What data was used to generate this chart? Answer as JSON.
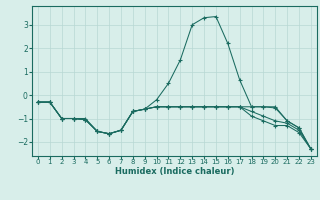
{
  "title": "",
  "xlabel": "Humidex (Indice chaleur)",
  "background_color": "#d8eeea",
  "grid_color": "#b8d8d4",
  "line_color": "#1a6b60",
  "xlim": [
    -0.5,
    23.5
  ],
  "ylim": [
    -2.6,
    3.8
  ],
  "yticks": [
    -2,
    -1,
    0,
    1,
    2,
    3
  ],
  "xticks": [
    0,
    1,
    2,
    3,
    4,
    5,
    6,
    7,
    8,
    9,
    10,
    11,
    12,
    13,
    14,
    15,
    16,
    17,
    18,
    19,
    20,
    21,
    22,
    23
  ],
  "x": [
    0,
    1,
    2,
    3,
    4,
    5,
    6,
    7,
    8,
    9,
    10,
    11,
    12,
    13,
    14,
    15,
    16,
    17,
    18,
    19,
    20,
    21,
    22,
    23
  ],
  "line1": [
    -0.3,
    -0.3,
    -1.0,
    -1.0,
    -1.0,
    -1.55,
    -1.65,
    -1.5,
    -0.7,
    -0.6,
    -0.2,
    0.5,
    1.5,
    3.0,
    3.3,
    3.35,
    2.2,
    0.65,
    -0.5,
    -0.5,
    -0.5,
    -1.1,
    -1.4,
    -2.3
  ],
  "line2": [
    -0.3,
    -0.3,
    -1.0,
    -1.0,
    -1.05,
    -1.55,
    -1.65,
    -1.5,
    -0.7,
    -0.6,
    -0.5,
    -0.5,
    -0.5,
    -0.5,
    -0.5,
    -0.5,
    -0.5,
    -0.5,
    -0.5,
    -0.5,
    -0.55,
    -1.1,
    -1.4,
    -2.3
  ],
  "line3": [
    -0.3,
    -0.3,
    -1.0,
    -1.0,
    -1.05,
    -1.55,
    -1.65,
    -1.5,
    -0.7,
    -0.6,
    -0.5,
    -0.5,
    -0.5,
    -0.5,
    -0.5,
    -0.5,
    -0.5,
    -0.5,
    -0.7,
    -0.9,
    -1.1,
    -1.2,
    -1.5,
    -2.3
  ],
  "line4": [
    -0.3,
    -0.3,
    -1.0,
    -1.0,
    -1.05,
    -1.55,
    -1.65,
    -1.5,
    -0.7,
    -0.6,
    -0.5,
    -0.5,
    -0.5,
    -0.5,
    -0.5,
    -0.5,
    -0.5,
    -0.5,
    -0.9,
    -1.1,
    -1.3,
    -1.3,
    -1.6,
    -2.3
  ]
}
